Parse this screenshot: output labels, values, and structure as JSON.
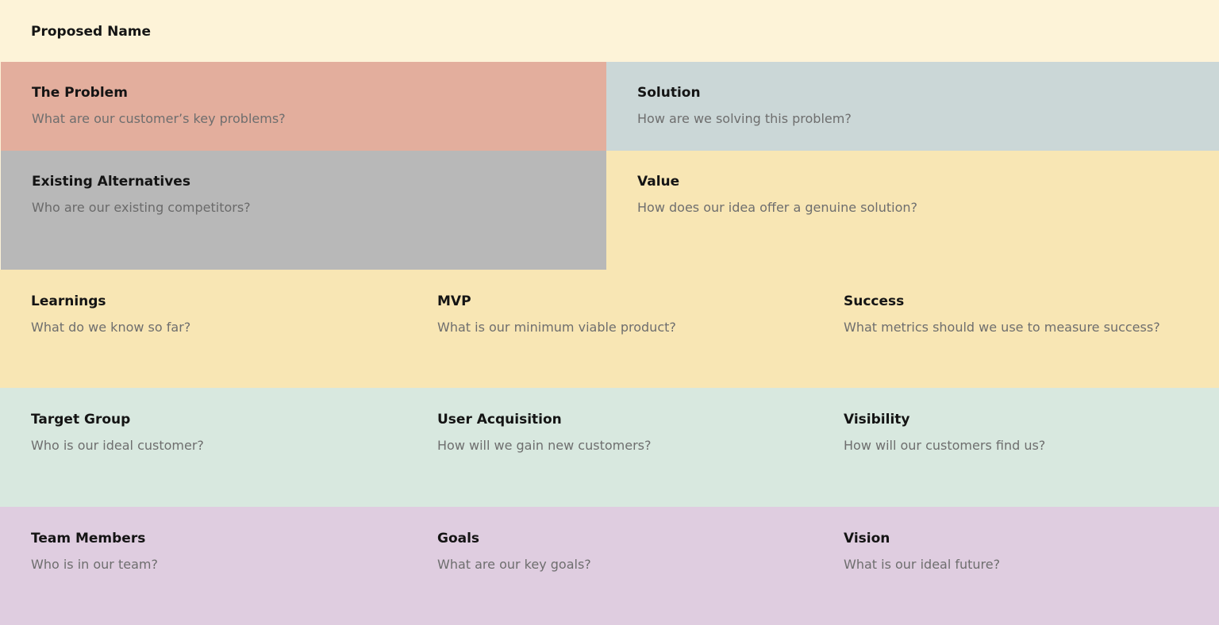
{
  "colors": {
    "cream": "#fdf3d8",
    "salmon": "#e3ae9d",
    "blue_grey": "#cbd7d7",
    "grey": "#b8b8b8",
    "yellow": "#f8e6b4",
    "mint": "#d8e8df",
    "lavender": "#dfcde0"
  },
  "canvas": {
    "proposed_name": {
      "title": "Proposed Name"
    },
    "problem": {
      "title": "The Problem",
      "prompt": "What are our customer’s key problems?"
    },
    "solution": {
      "title": "Solution",
      "prompt": "How are we solving this problem?"
    },
    "existing_alternatives": {
      "title": "Existing Alternatives",
      "prompt": "Who are our existing competitors?"
    },
    "value": {
      "title": "Value",
      "prompt": "How does our idea offer a genuine solution?"
    },
    "learnings": {
      "title": "Learnings",
      "prompt": "What do we know so far?"
    },
    "mvp": {
      "title": "MVP",
      "prompt": "What is our minimum viable product?"
    },
    "success": {
      "title": "Success",
      "prompt": "What metrics should we use to measure success?"
    },
    "target_group": {
      "title": "Target Group",
      "prompt": "Who is our ideal customer?"
    },
    "user_acquisition": {
      "title": "User Acquisition",
      "prompt": "How will we gain new customers?"
    },
    "visibility": {
      "title": "Visibility",
      "prompt": "How will our customers find us?"
    },
    "team_members": {
      "title": "Team Members",
      "prompt": "Who is in our team?"
    },
    "goals": {
      "title": "Goals",
      "prompt": "What are our key goals?"
    },
    "vision": {
      "title": "Vision",
      "prompt": "What is our ideal future?"
    }
  }
}
